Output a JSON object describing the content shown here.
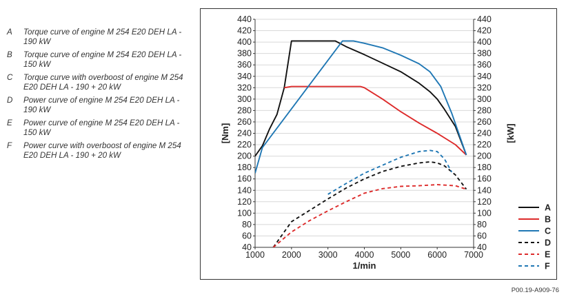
{
  "key": [
    {
      "letter": "A",
      "text": "Torque curve of engine M 254 E20 DEH LA - 190 kW"
    },
    {
      "letter": "B",
      "text": "Torque curve of engine M 254 E20 DEH LA - 150 kW"
    },
    {
      "letter": "C",
      "text": "Torque curve with overboost of engine M 254 E20 DEH LA - 190 + 20 kW"
    },
    {
      "letter": "D",
      "text": "Power curve of engine M 254 E20 DEH LA - 190 kW"
    },
    {
      "letter": "E",
      "text": "Power curve of engine M 254 E20 DEH LA - 150 kW"
    },
    {
      "letter": "F",
      "text": "Power curve with overboost of engine M 254 E20 DEH LA - 190 + 20 kW"
    }
  ],
  "reference": "P00.19-A909-76",
  "chart_data": {
    "type": "line",
    "title": "",
    "xlabel": "1/min",
    "ylabel": "[Nm]",
    "y2label": "[kW]",
    "xlim": [
      1000,
      7000
    ],
    "ylim": [
      40,
      440
    ],
    "y2lim": [
      40,
      440
    ],
    "xticks": [
      1000,
      2000,
      3000,
      4000,
      5000,
      6000,
      7000
    ],
    "yticks": [
      40,
      60,
      80,
      100,
      120,
      140,
      160,
      180,
      200,
      220,
      240,
      260,
      280,
      300,
      320,
      340,
      360,
      380,
      400,
      420,
      440
    ],
    "grid": "horizontal",
    "legend_position": "right-bottom",
    "series": [
      {
        "name": "A",
        "axis": "left",
        "color": "#111111",
        "dashed": false,
        "x": [
          1000,
          1200,
          1400,
          1600,
          1800,
          2000,
          3000,
          3200,
          3500,
          4000,
          4500,
          5000,
          5500,
          5800,
          6000,
          6200,
          6500,
          6800
        ],
        "y": [
          200,
          218,
          248,
          273,
          320,
          402,
          402,
          402,
          392,
          378,
          363,
          348,
          328,
          313,
          300,
          282,
          252,
          202
        ]
      },
      {
        "name": "B",
        "axis": "left",
        "color": "#dd2a2a",
        "dashed": false,
        "x": [
          1800,
          2000,
          2500,
          3000,
          3500,
          3900,
          4000,
          4500,
          5000,
          5500,
          6000,
          6500,
          6800
        ],
        "y": [
          320,
          322,
          322,
          322,
          322,
          322,
          320,
          300,
          278,
          258,
          240,
          220,
          202
        ]
      },
      {
        "name": "C",
        "axis": "left",
        "color": "#1f77b4",
        "dashed": false,
        "x": [
          1000,
          1200,
          3400,
          3700,
          4000,
          4500,
          5000,
          5500,
          5800,
          6100,
          6400,
          6800
        ],
        "y": [
          170,
          215,
          402,
          402,
          398,
          390,
          377,
          362,
          348,
          322,
          275,
          202
        ]
      },
      {
        "name": "D",
        "axis": "right",
        "color": "#111111",
        "dashed": true,
        "x": [
          1500,
          2000,
          2500,
          3000,
          3500,
          4000,
          4500,
          5000,
          5500,
          5800,
          6000,
          6200,
          6500,
          6800
        ],
        "y": [
          40,
          85,
          105,
          125,
          144,
          160,
          173,
          182,
          188,
          190,
          188,
          183,
          167,
          142
        ]
      },
      {
        "name": "E",
        "axis": "right",
        "color": "#dd2a2a",
        "dashed": true,
        "x": [
          1500,
          2000,
          2500,
          3000,
          3500,
          4000,
          4500,
          5000,
          5500,
          6000,
          6500,
          6800
        ],
        "y": [
          40,
          67,
          87,
          104,
          120,
          135,
          143,
          147,
          148,
          150,
          148,
          142
        ]
      },
      {
        "name": "F",
        "axis": "right",
        "color": "#1f77b4",
        "dashed": true,
        "x": [
          3000,
          3500,
          4000,
          4500,
          5000,
          5500,
          5800,
          6000,
          6200,
          6400
        ],
        "y": [
          133,
          152,
          170,
          184,
          198,
          208,
          210,
          208,
          195,
          172
        ]
      }
    ]
  }
}
